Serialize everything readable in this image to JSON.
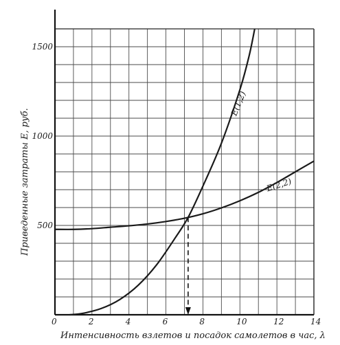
{
  "chart_data": {
    "type": "line",
    "title": "",
    "xlabel": "Интенсивность взлетов и посадок самолетов в час, λ",
    "ylabel": "Приведенные затраты Е, руб.",
    "xlim": [
      0,
      14
    ],
    "ylim": [
      0,
      1600
    ],
    "x_major_ticks": [
      0,
      2,
      4,
      6,
      8,
      10,
      12,
      14
    ],
    "x_tick_labels": [
      "0",
      "2",
      "4",
      "6",
      "8",
      "10",
      "12",
      "14"
    ],
    "y_major_ticks": [
      500,
      1000,
      1500
    ],
    "y_tick_labels": [
      "500",
      "1000",
      "1500"
    ],
    "grid": true,
    "x_grid_step": 1,
    "y_grid_step": 100,
    "series": [
      {
        "name": "E(1,2)",
        "color": "#1a1a1a",
        "x": [
          0.8,
          1.5,
          2.5,
          3.5,
          4.5,
          5.5,
          6.5,
          7.2,
          8,
          9,
          10,
          10.5,
          10.8
        ],
        "y": [
          0,
          8,
          35,
          85,
          165,
          280,
          430,
          545,
          720,
          960,
          1260,
          1450,
          1600
        ]
      },
      {
        "name": "E(2,2)",
        "color": "#1a1a1a",
        "x": [
          0,
          1,
          2,
          3,
          4,
          5,
          6,
          7,
          8,
          9,
          10,
          11,
          12,
          13,
          14
        ],
        "y": [
          478,
          478,
          482,
          490,
          498,
          508,
          522,
          540,
          565,
          598,
          638,
          685,
          740,
          800,
          860
        ]
      }
    ],
    "annotations": [
      {
        "type": "dashed-arrow-down",
        "x": 7.2,
        "y_from": 545,
        "y_to": 0
      }
    ]
  }
}
